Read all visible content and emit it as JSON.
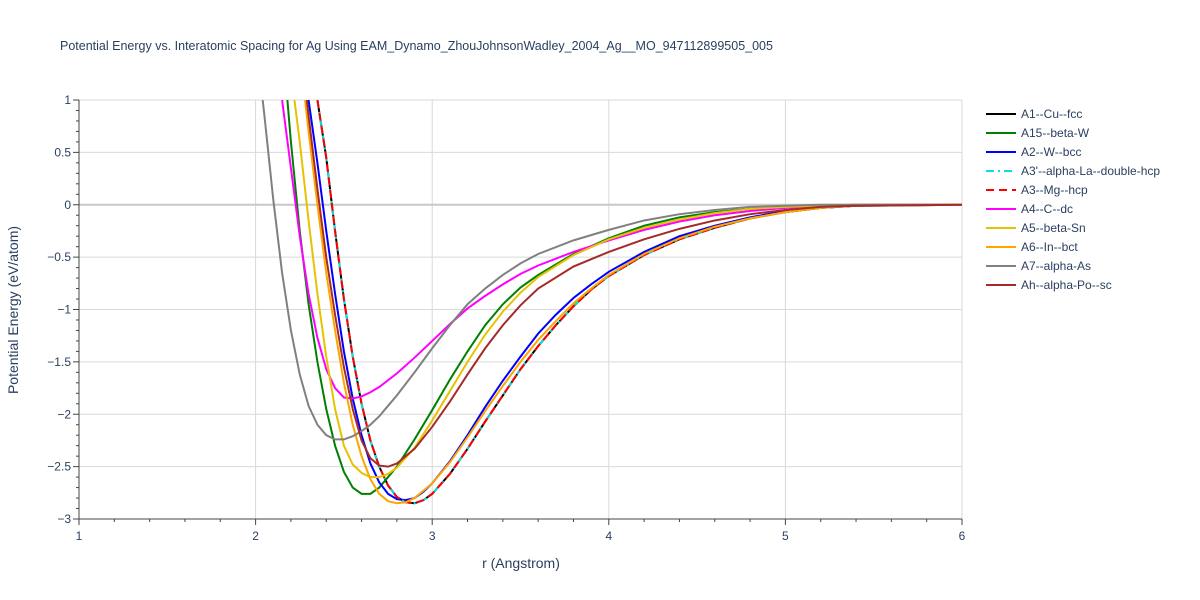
{
  "chart_data": {
    "type": "line",
    "title": "Potential Energy vs. Interatomic Spacing for Ag Using EAM_Dynamo_ZhouJohnsonWadley_2004_Ag__MO_947112899505_005",
    "xlabel": "r (Angstrom)",
    "ylabel": "Potential Energy (eV/atom)",
    "xlim": [
      1,
      6
    ],
    "ylim": [
      -3,
      1
    ],
    "xticks": [
      1,
      2,
      3,
      4,
      5,
      6
    ],
    "yticks": [
      1,
      0.5,
      0,
      -0.5,
      -1,
      -1.5,
      -2,
      -2.5,
      -3
    ],
    "ytick_labels": [
      "1",
      "0.5",
      "0",
      "−0.5",
      "−1",
      "−1.5",
      "−2",
      "−2.5",
      "−3"
    ],
    "grid": true,
    "legend_position": "right",
    "series": [
      {
        "name": "A1--Cu--fcc",
        "color": "#000000",
        "dash": "solid",
        "x": [
          2.35,
          2.4,
          2.45,
          2.5,
          2.55,
          2.6,
          2.65,
          2.7,
          2.75,
          2.8,
          2.85,
          2.9,
          2.95,
          3.0,
          3.1,
          3.2,
          3.3,
          3.4,
          3.5,
          3.6,
          3.7,
          3.8,
          3.9,
          4.0,
          4.2,
          4.4,
          4.6,
          4.8,
          5.0,
          5.2,
          5.4,
          5.6,
          6.0
        ],
        "y": [
          1.0,
          0.45,
          -0.25,
          -0.9,
          -1.45,
          -1.9,
          -2.25,
          -2.5,
          -2.68,
          -2.79,
          -2.84,
          -2.85,
          -2.82,
          -2.76,
          -2.57,
          -2.33,
          -2.07,
          -1.82,
          -1.57,
          -1.35,
          -1.15,
          -0.97,
          -0.81,
          -0.68,
          -0.48,
          -0.33,
          -0.22,
          -0.13,
          -0.07,
          -0.03,
          -0.01,
          0.0,
          0.0
        ]
      },
      {
        "name": "A15--beta-W",
        "color": "#008000",
        "dash": "solid",
        "x": [
          2.18,
          2.2,
          2.25,
          2.3,
          2.35,
          2.4,
          2.45,
          2.5,
          2.55,
          2.6,
          2.65,
          2.7,
          2.8,
          2.9,
          3.0,
          3.1,
          3.2,
          3.3,
          3.4,
          3.5,
          3.6,
          3.8,
          4.0,
          4.2,
          4.4,
          4.6,
          4.8,
          5.0,
          5.2,
          5.4,
          6.0
        ],
        "y": [
          1.0,
          0.6,
          -0.25,
          -0.95,
          -1.5,
          -1.95,
          -2.3,
          -2.55,
          -2.7,
          -2.76,
          -2.76,
          -2.7,
          -2.5,
          -2.24,
          -1.96,
          -1.67,
          -1.4,
          -1.15,
          -0.95,
          -0.79,
          -0.67,
          -0.47,
          -0.32,
          -0.2,
          -0.12,
          -0.07,
          -0.04,
          -0.02,
          -0.01,
          0.0,
          0.0
        ]
      },
      {
        "name": "A2--W--bcc",
        "color": "#0000ff",
        "dash": "solid",
        "x": [
          2.3,
          2.35,
          2.4,
          2.45,
          2.5,
          2.55,
          2.6,
          2.65,
          2.7,
          2.75,
          2.8,
          2.85,
          2.9,
          2.95,
          3.0,
          3.1,
          3.2,
          3.3,
          3.4,
          3.5,
          3.6,
          3.7,
          3.8,
          3.9,
          4.0,
          4.2,
          4.4,
          4.6,
          4.8,
          5.0,
          5.2,
          5.4,
          6.0
        ],
        "y": [
          1.0,
          0.4,
          -0.25,
          -0.85,
          -1.4,
          -1.85,
          -2.2,
          -2.47,
          -2.65,
          -2.76,
          -2.81,
          -2.82,
          -2.8,
          -2.74,
          -2.66,
          -2.45,
          -2.2,
          -1.93,
          -1.68,
          -1.45,
          -1.23,
          -1.05,
          -0.89,
          -0.76,
          -0.64,
          -0.45,
          -0.3,
          -0.2,
          -0.12,
          -0.06,
          -0.03,
          -0.01,
          0.0
        ]
      },
      {
        "name": "A3'--alpha-La--double-hcp",
        "color": "#00e0e0",
        "dash": "dashdot",
        "x": [
          2.35,
          2.4,
          2.45,
          2.5,
          2.55,
          2.6,
          2.65,
          2.7,
          2.75,
          2.8,
          2.85,
          2.9,
          2.95,
          3.0,
          3.1,
          3.2,
          3.3,
          3.4,
          3.5,
          3.6,
          3.7,
          3.8,
          3.9,
          4.0,
          4.2,
          4.4,
          4.6,
          4.8,
          5.0,
          5.2,
          5.4,
          5.6,
          6.0
        ],
        "y": [
          1.0,
          0.45,
          -0.25,
          -0.9,
          -1.45,
          -1.9,
          -2.25,
          -2.5,
          -2.68,
          -2.79,
          -2.84,
          -2.85,
          -2.82,
          -2.76,
          -2.57,
          -2.33,
          -2.07,
          -1.82,
          -1.57,
          -1.35,
          -1.15,
          -0.97,
          -0.81,
          -0.68,
          -0.48,
          -0.33,
          -0.22,
          -0.13,
          -0.07,
          -0.03,
          -0.01,
          0.0,
          0.0
        ]
      },
      {
        "name": "A3--Mg--hcp",
        "color": "#ff0000",
        "dash": "dash",
        "x": [
          2.35,
          2.4,
          2.45,
          2.5,
          2.55,
          2.6,
          2.65,
          2.7,
          2.75,
          2.8,
          2.85,
          2.9,
          2.95,
          3.0,
          3.1,
          3.2,
          3.3,
          3.4,
          3.5,
          3.6,
          3.7,
          3.8,
          3.9,
          4.0,
          4.2,
          4.4,
          4.6,
          4.8,
          5.0,
          5.2,
          5.4,
          5.6,
          6.0
        ],
        "y": [
          1.0,
          0.45,
          -0.25,
          -0.9,
          -1.45,
          -1.9,
          -2.25,
          -2.5,
          -2.68,
          -2.79,
          -2.84,
          -2.85,
          -2.82,
          -2.76,
          -2.57,
          -2.33,
          -2.07,
          -1.82,
          -1.57,
          -1.35,
          -1.15,
          -0.97,
          -0.81,
          -0.68,
          -0.48,
          -0.33,
          -0.22,
          -0.13,
          -0.07,
          -0.03,
          -0.01,
          0.0,
          0.0
        ]
      },
      {
        "name": "A4--C--dc",
        "color": "#ff00ff",
        "dash": "solid",
        "x": [
          2.15,
          2.2,
          2.25,
          2.3,
          2.35,
          2.4,
          2.45,
          2.5,
          2.55,
          2.6,
          2.65,
          2.7,
          2.8,
          2.9,
          3.0,
          3.1,
          3.2,
          3.3,
          3.4,
          3.5,
          3.6,
          3.8,
          4.0,
          4.2,
          4.4,
          4.6,
          4.8,
          5.0,
          5.2,
          5.4,
          6.0
        ],
        "y": [
          1.0,
          0.35,
          -0.3,
          -0.85,
          -1.27,
          -1.57,
          -1.75,
          -1.84,
          -1.85,
          -1.83,
          -1.79,
          -1.74,
          -1.61,
          -1.46,
          -1.3,
          -1.14,
          -0.99,
          -0.87,
          -0.76,
          -0.66,
          -0.58,
          -0.45,
          -0.34,
          -0.24,
          -0.16,
          -0.1,
          -0.06,
          -0.03,
          -0.01,
          0.0,
          0.0
        ]
      },
      {
        "name": "A5--beta-Sn",
        "color": "#e6c200",
        "dash": "solid",
        "x": [
          2.22,
          2.25,
          2.3,
          2.35,
          2.4,
          2.45,
          2.5,
          2.55,
          2.6,
          2.65,
          2.7,
          2.75,
          2.8,
          2.9,
          3.0,
          3.1,
          3.2,
          3.3,
          3.4,
          3.5,
          3.6,
          3.8,
          4.0,
          4.2,
          4.4,
          4.6,
          4.8,
          5.0,
          5.2,
          5.4,
          6.0
        ],
        "y": [
          1.0,
          0.6,
          -0.15,
          -0.85,
          -1.45,
          -1.95,
          -2.3,
          -2.48,
          -2.56,
          -2.6,
          -2.6,
          -2.57,
          -2.51,
          -2.32,
          -2.06,
          -1.78,
          -1.5,
          -1.24,
          -1.02,
          -0.84,
          -0.69,
          -0.48,
          -0.33,
          -0.22,
          -0.14,
          -0.08,
          -0.04,
          -0.02,
          -0.01,
          0.0,
          0.0
        ]
      },
      {
        "name": "A6--In--bct",
        "color": "#ffa500",
        "dash": "solid",
        "x": [
          2.28,
          2.3,
          2.35,
          2.4,
          2.45,
          2.5,
          2.55,
          2.6,
          2.65,
          2.7,
          2.75,
          2.8,
          2.85,
          2.9,
          3.0,
          3.1,
          3.2,
          3.3,
          3.4,
          3.5,
          3.6,
          3.7,
          3.8,
          3.9,
          4.0,
          4.2,
          4.4,
          4.6,
          4.8,
          5.0,
          5.2,
          5.4,
          6.0
        ],
        "y": [
          1.0,
          0.7,
          0.0,
          -0.65,
          -1.2,
          -1.7,
          -2.1,
          -2.4,
          -2.62,
          -2.76,
          -2.83,
          -2.85,
          -2.84,
          -2.8,
          -2.66,
          -2.46,
          -2.22,
          -1.97,
          -1.73,
          -1.5,
          -1.29,
          -1.11,
          -0.94,
          -0.8,
          -0.67,
          -0.47,
          -0.32,
          -0.21,
          -0.13,
          -0.07,
          -0.03,
          -0.01,
          0.0
        ]
      },
      {
        "name": "A7--alpha-As",
        "color": "#808080",
        "dash": "solid",
        "x": [
          2.04,
          2.05,
          2.1,
          2.15,
          2.2,
          2.25,
          2.3,
          2.35,
          2.4,
          2.45,
          2.5,
          2.55,
          2.6,
          2.65,
          2.7,
          2.8,
          2.9,
          3.0,
          3.1,
          3.2,
          3.3,
          3.4,
          3.5,
          3.6,
          3.8,
          4.0,
          4.2,
          4.4,
          4.6,
          4.8,
          5.0,
          5.2,
          6.0
        ],
        "y": [
          1.0,
          0.85,
          0.05,
          -0.65,
          -1.2,
          -1.62,
          -1.92,
          -2.1,
          -2.2,
          -2.24,
          -2.24,
          -2.21,
          -2.16,
          -2.1,
          -2.02,
          -1.82,
          -1.6,
          -1.37,
          -1.15,
          -0.95,
          -0.8,
          -0.67,
          -0.56,
          -0.47,
          -0.34,
          -0.24,
          -0.15,
          -0.09,
          -0.05,
          -0.02,
          -0.01,
          0.0,
          0.0
        ]
      },
      {
        "name": "Ah--alpha-Po--sc",
        "color": "#a52a2a",
        "dash": "solid",
        "x": [
          2.29,
          2.3,
          2.35,
          2.4,
          2.45,
          2.5,
          2.55,
          2.6,
          2.65,
          2.7,
          2.75,
          2.8,
          2.9,
          3.0,
          3.1,
          3.2,
          3.3,
          3.4,
          3.5,
          3.6,
          3.8,
          4.0,
          4.2,
          4.4,
          4.6,
          4.8,
          5.0,
          5.2,
          5.4,
          6.0
        ],
        "y": [
          1.0,
          0.85,
          0.15,
          -0.5,
          -1.05,
          -1.55,
          -1.95,
          -2.25,
          -2.42,
          -2.49,
          -2.5,
          -2.47,
          -2.33,
          -2.12,
          -1.88,
          -1.62,
          -1.37,
          -1.15,
          -0.96,
          -0.8,
          -0.59,
          -0.45,
          -0.33,
          -0.23,
          -0.15,
          -0.09,
          -0.05,
          -0.02,
          -0.01,
          0.0
        ]
      }
    ]
  }
}
